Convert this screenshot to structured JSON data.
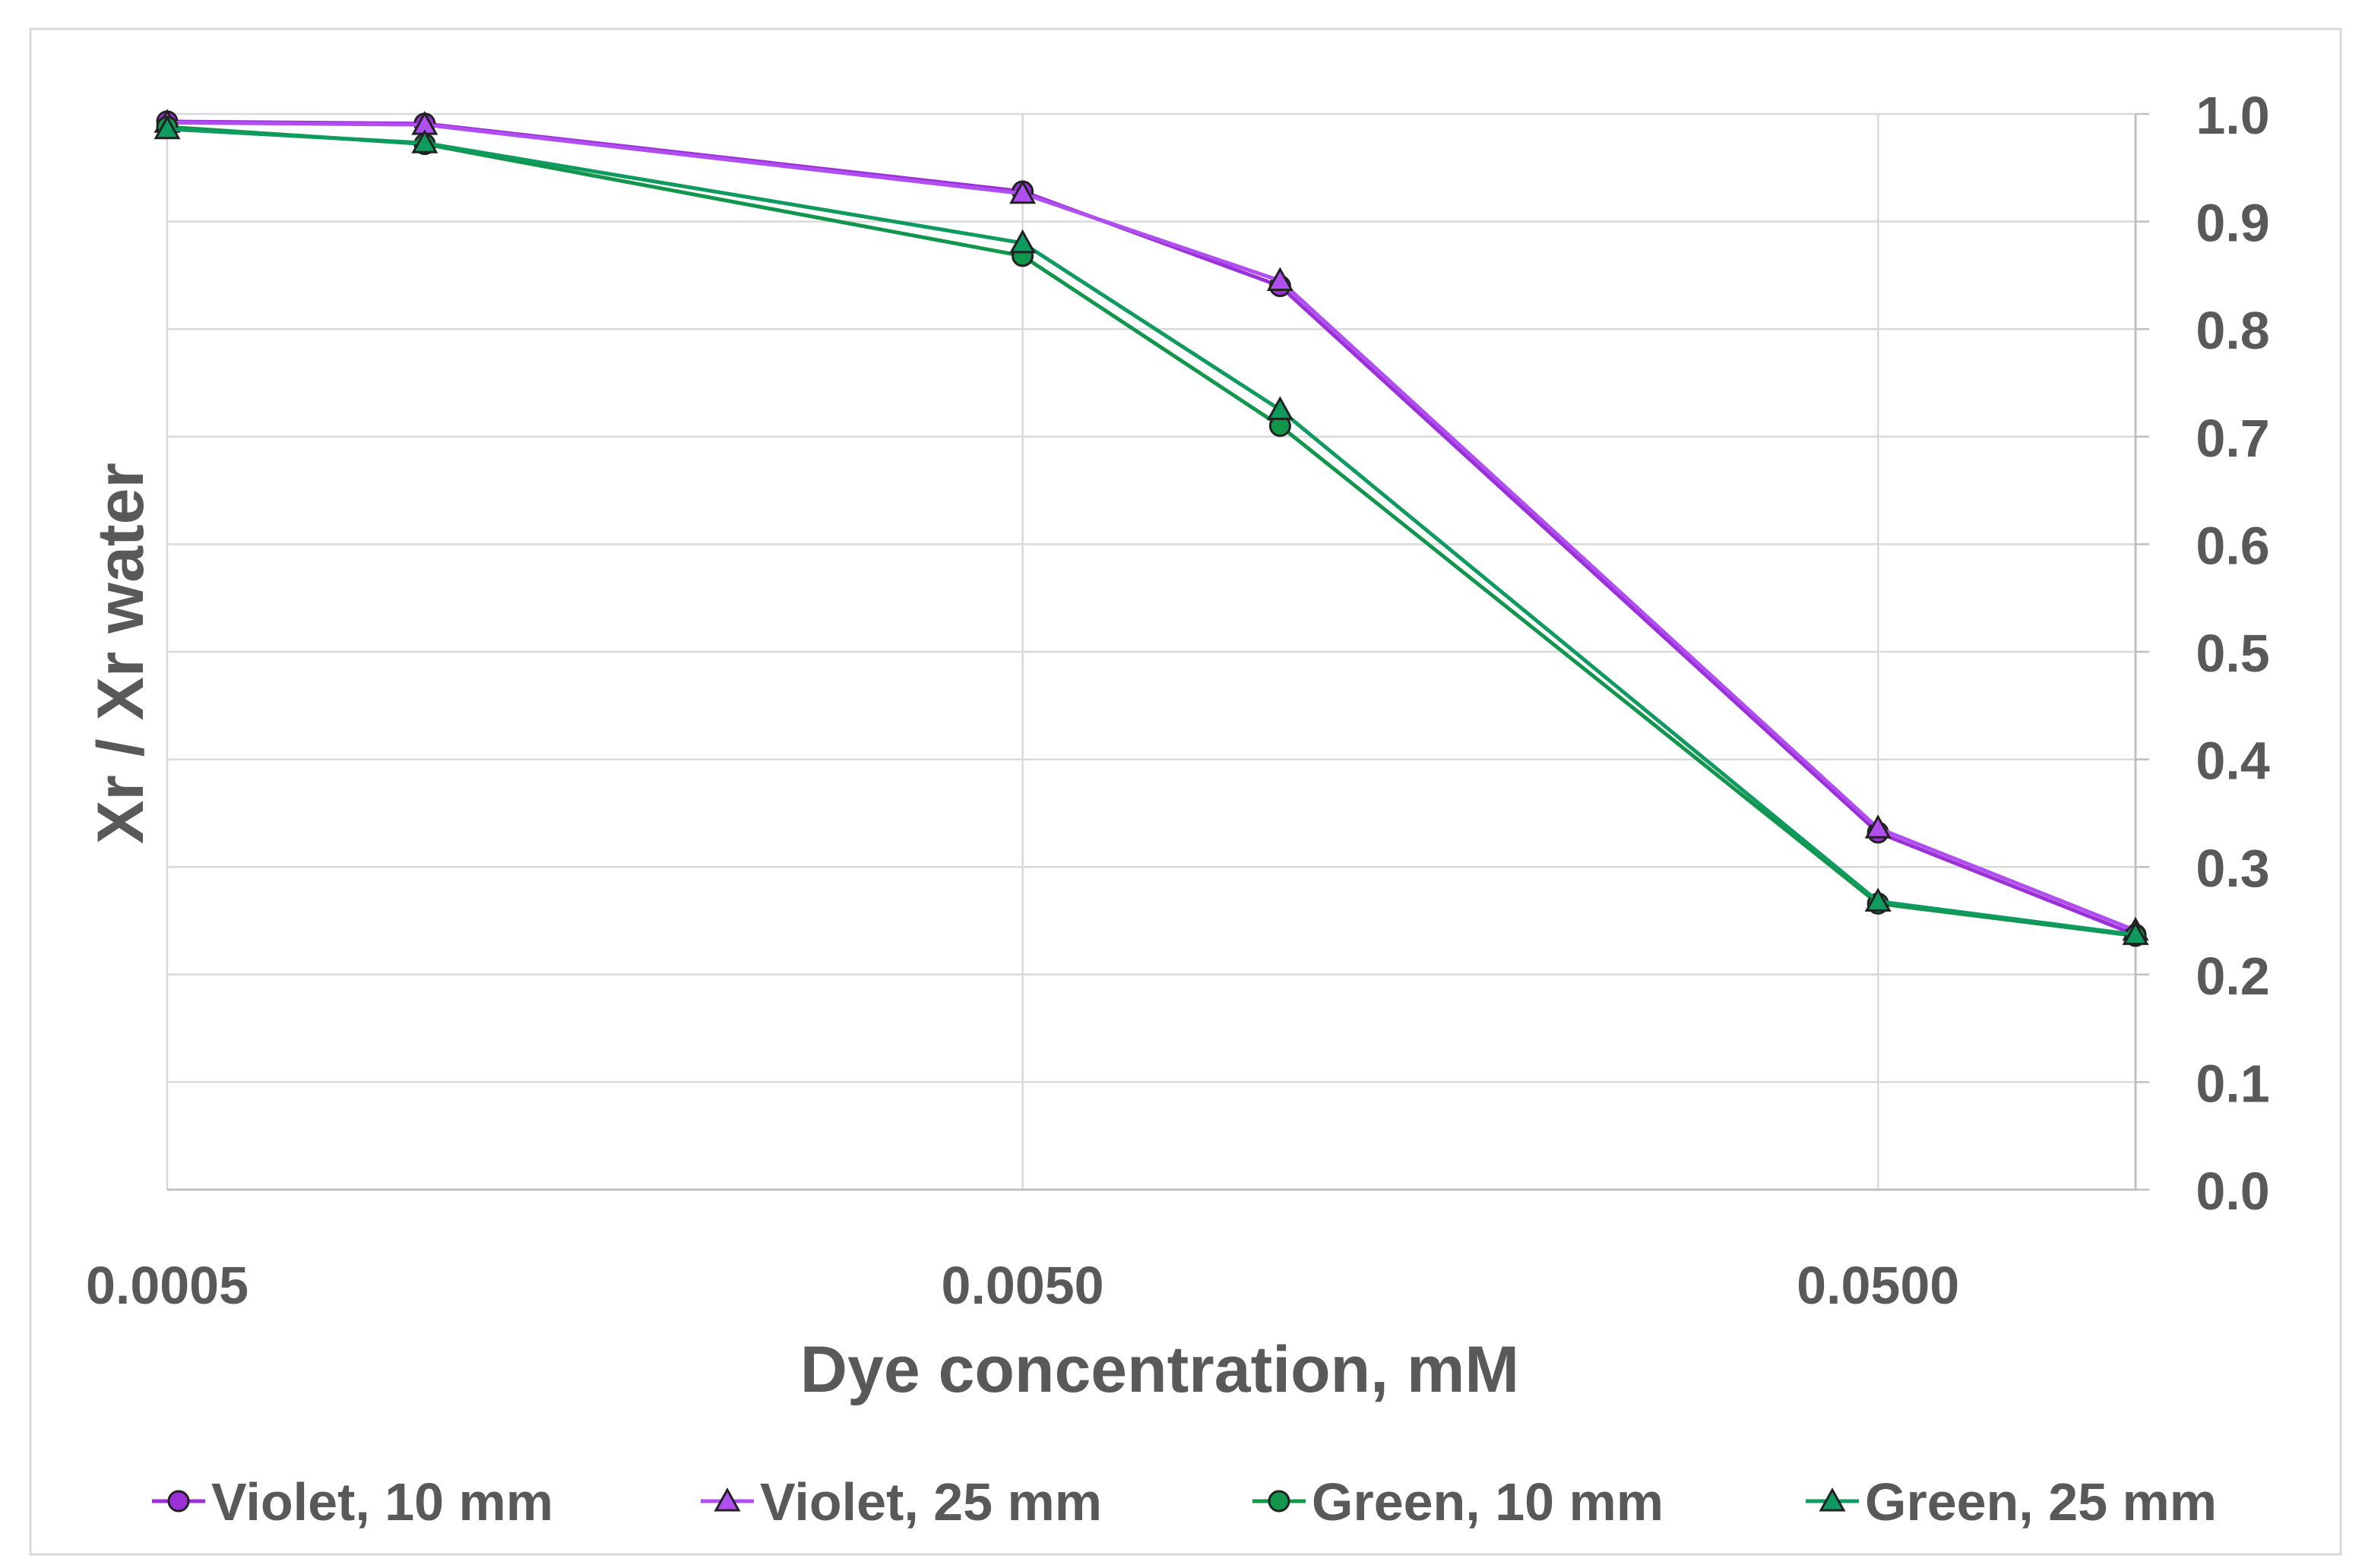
{
  "chart_data": {
    "type": "line",
    "xscale": "log",
    "xlabel": "Dye concentration, mM",
    "ylabel": "Xr / Xr water",
    "x": [
      0.0005,
      0.001,
      0.005,
      0.01,
      0.05,
      0.1
    ],
    "xticks": [
      0.0005,
      0.005,
      0.05
    ],
    "xtick_labels": [
      "0.0005",
      "0.0050",
      "0.0500"
    ],
    "xlim": [
      0.0005,
      0.1
    ],
    "ylim": [
      0,
      1
    ],
    "yticks": [
      0.0,
      0.1,
      0.2,
      0.3,
      0.4,
      0.5,
      0.6,
      0.7,
      0.8,
      0.9,
      1.0
    ],
    "ytick_labels": [
      "0.0",
      "0.1",
      "0.2",
      "0.3",
      "0.4",
      "0.5",
      "0.6",
      "0.7",
      "0.8",
      "0.9",
      "1.0"
    ],
    "yaxis_position": "right",
    "grid": true,
    "legend_position": "bottom",
    "series": [
      {
        "name": "Violet, 10 mm",
        "color": "#9b30d8",
        "marker": "circle",
        "values": [
          0.993,
          0.991,
          0.928,
          0.84,
          0.332,
          0.237
        ]
      },
      {
        "name": "Violet, 25 mm",
        "color": "#b04ef0",
        "marker": "triangle",
        "values": [
          0.992,
          0.99,
          0.926,
          0.845,
          0.336,
          0.241
        ]
      },
      {
        "name": "Green, 10 mm",
        "color": "#12964b",
        "marker": "circle",
        "values": [
          0.988,
          0.972,
          0.868,
          0.71,
          0.266,
          0.236
        ]
      },
      {
        "name": "Green, 25 mm",
        "color": "#0f9a60",
        "marker": "triangle",
        "values": [
          0.986,
          0.973,
          0.88,
          0.725,
          0.268,
          0.237
        ]
      }
    ]
  }
}
